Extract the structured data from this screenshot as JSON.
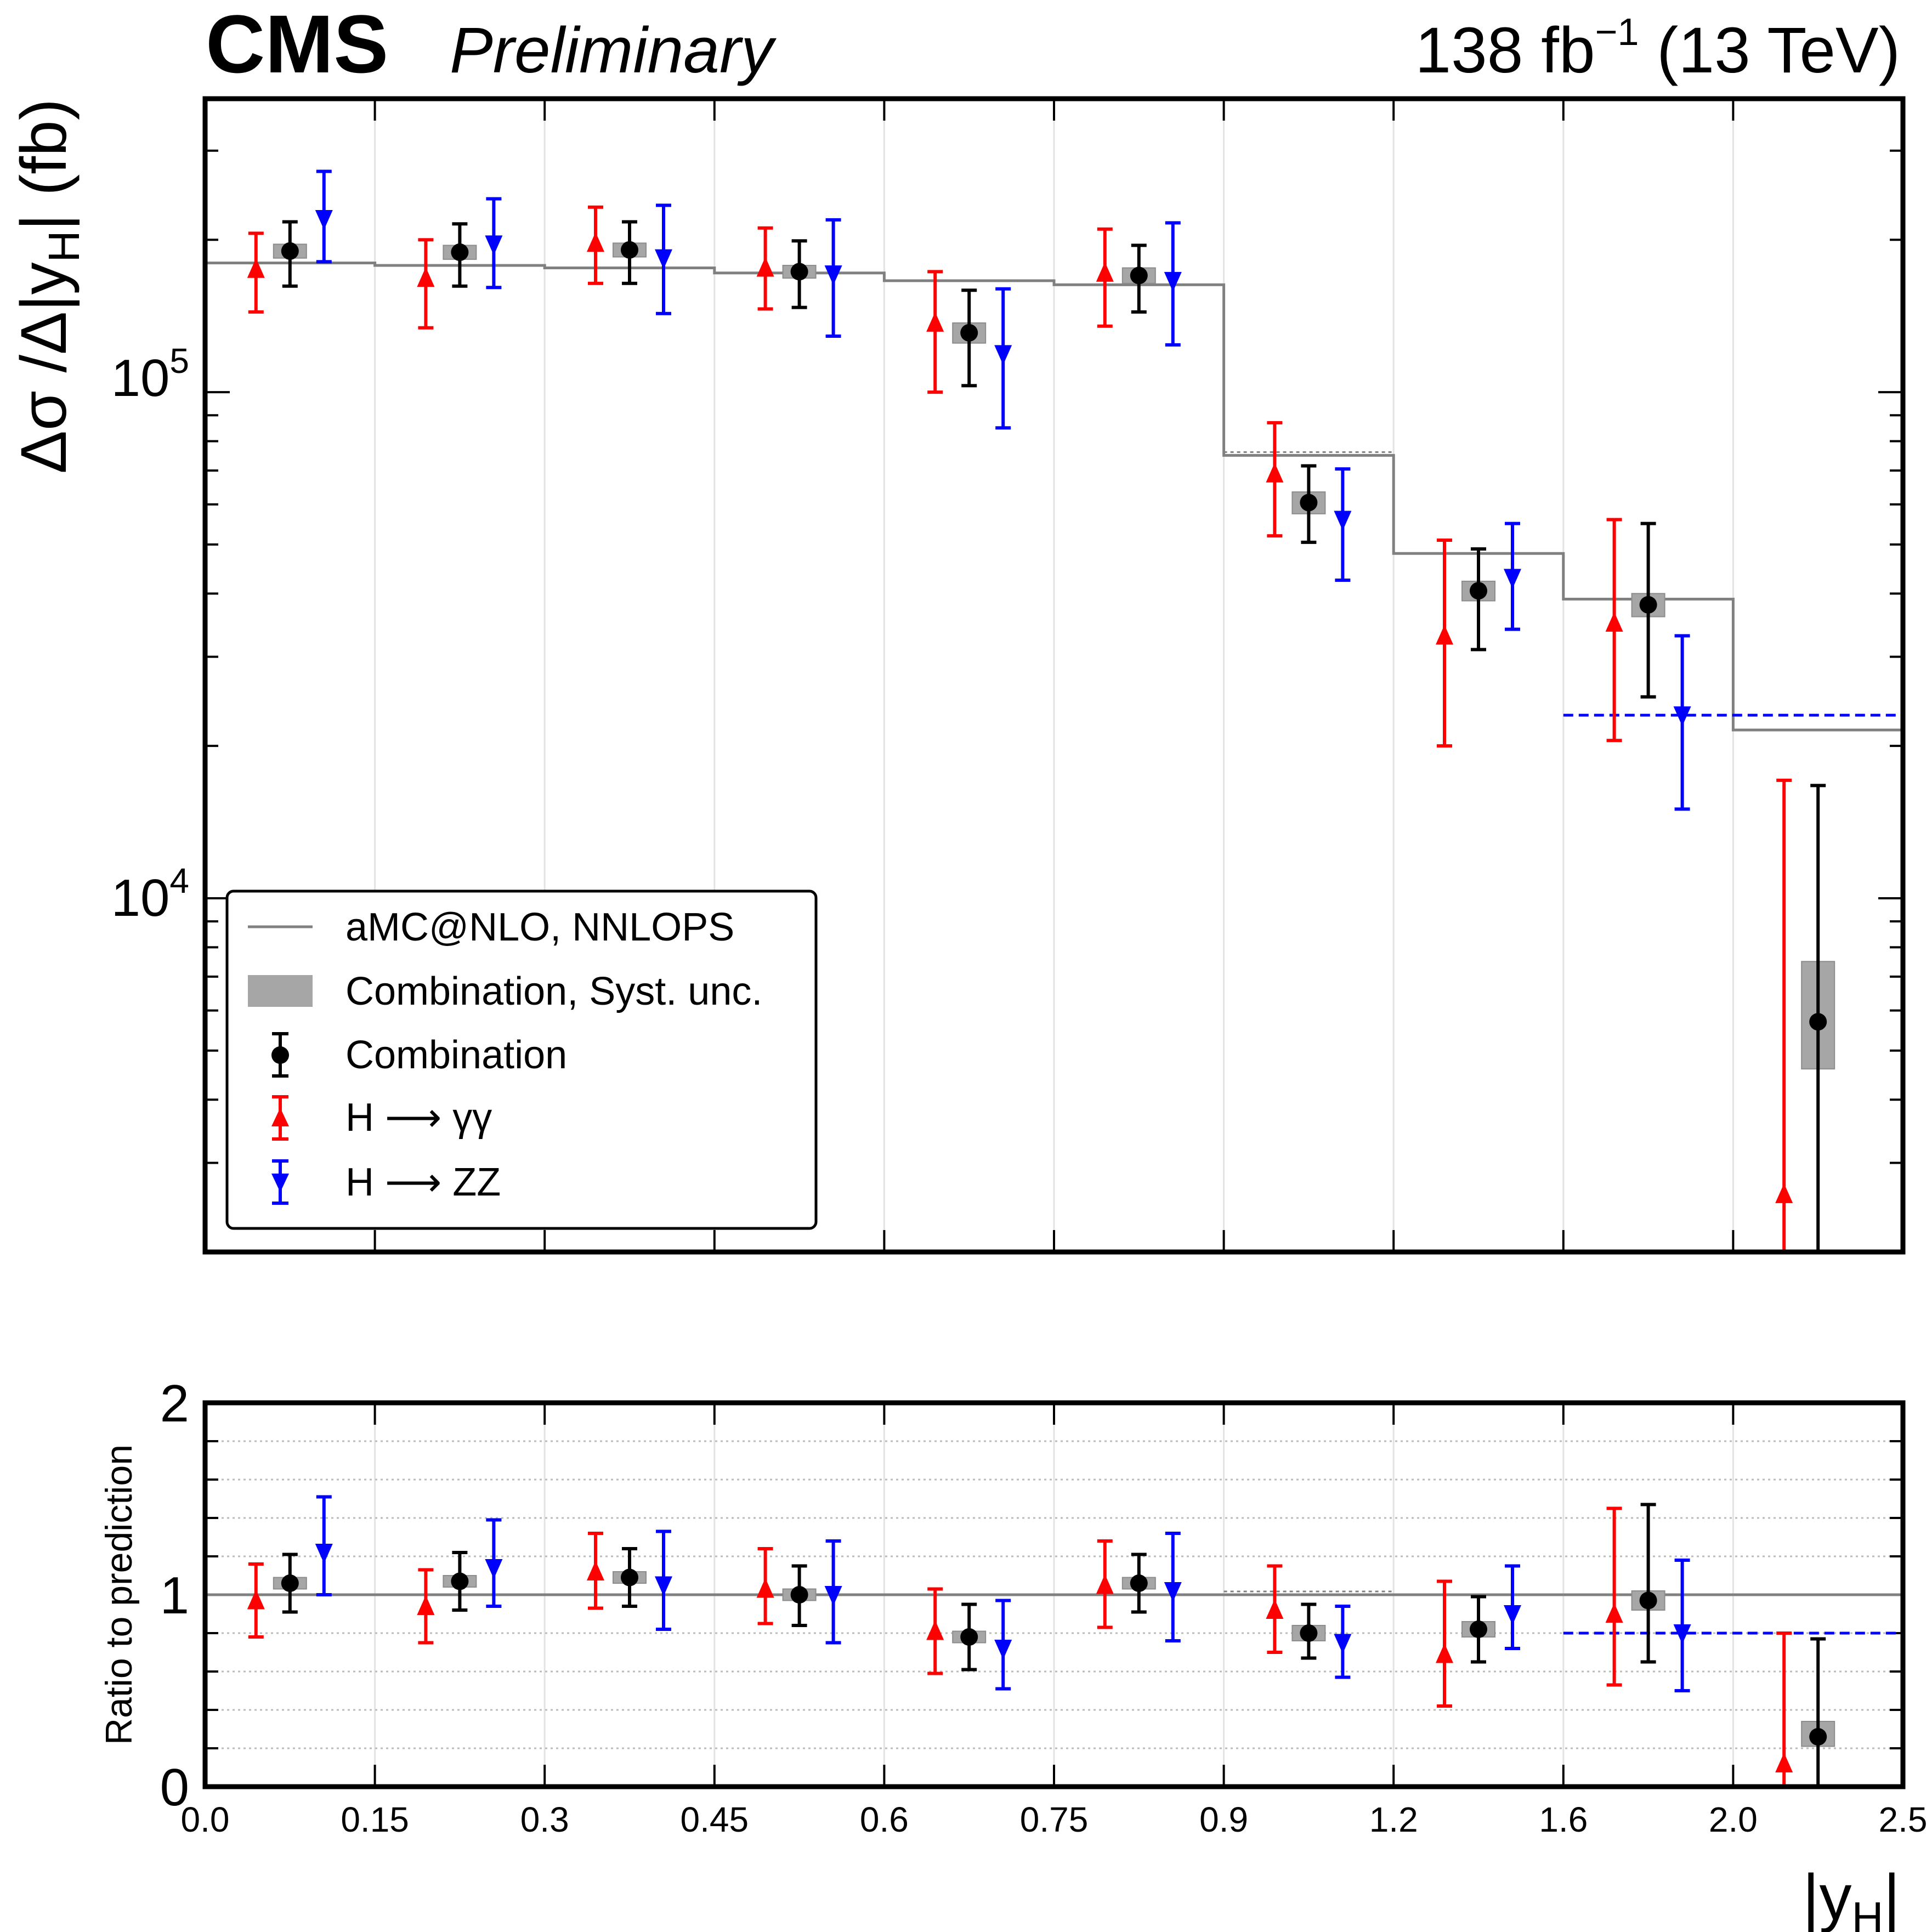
{
  "header": {
    "experiment": "CMS",
    "status": "Preliminary",
    "lumi_prefix": "138 fb",
    "lumi_exp": "−1",
    "lumi_suffix": " (13 TeV)"
  },
  "legend": {
    "prediction": "aMC@NLO, NNLOPS",
    "syst": "Combination, Syst. unc.",
    "combination": "Combination",
    "hgg_prefix": "H ⟶ γγ",
    "hzz_prefix": "H ⟶  ZZ"
  },
  "labels": {
    "ylabel_main": "Δσ /Δ|y",
    "ylabel_main_sub": "H",
    "ylabel_main_tail": "| (fb)",
    "ylabel_ratio": "Ratio to prediction",
    "xlabel": "|y",
    "xlabel_sub": "H",
    "xlabel_tail": "|",
    "y_tick_1e4_base": "10",
    "y_tick_1e4_exp": "4",
    "y_tick_1e5_base": "10",
    "y_tick_1e5_exp": "5"
  },
  "chart_data": [
    {
      "type": "line",
      "panel": "main",
      "y_scale": "log",
      "ylim": [
        2000,
        380000
      ],
      "x_bin_labels": [
        "0.0",
        "0.15",
        "0.3",
        "0.45",
        "0.6",
        "0.75",
        "0.9",
        "1.2",
        "1.6",
        "2.0",
        "2.5"
      ],
      "colors": {
        "prediction": "#808080",
        "syst": "#a6a6a6",
        "combination": "#000000",
        "hgg": "#ff0000",
        "hzz": "#0000ff"
      },
      "prediction": [
        180000,
        178000,
        176000,
        172000,
        166000,
        163000,
        75000,
        48000,
        39000,
        21500
      ],
      "prediction_hzz_last_bins": {
        "from_bin": 8,
        "value": 23000
      },
      "series": [
        {
          "name": "Combination",
          "values": [
            190000,
            189000,
            191000,
            173000,
            131000,
            170000,
            60500,
            40500,
            38000,
            5700
          ],
          "err_lo": [
            28000,
            27000,
            27000,
            26000,
            28000,
            26000,
            10000,
            9500,
            13000,
            3700
          ],
          "err_hi": [
            27000,
            26000,
            26000,
            26000,
            28000,
            25000,
            11000,
            8500,
            17000,
            11000
          ],
          "syst_lo": [
            6000,
            6000,
            6000,
            5000,
            6000,
            6000,
            3000,
            1800,
            2000,
            1100
          ],
          "syst_hi": [
            6000,
            6000,
            6000,
            5000,
            6000,
            6000,
            3000,
            1800,
            2000,
            1800
          ]
        },
        {
          "name": "H → γγ",
          "values": [
            175000,
            168000,
            197000,
            176000,
            137000,
            172000,
            69000,
            33000,
            35000,
            2600
          ],
          "err_lo": [
            31000,
            34000,
            33000,
            30000,
            37000,
            37000,
            17000,
            13000,
            14500,
            600
          ],
          "err_hi": [
            31000,
            32000,
            35000,
            35000,
            36000,
            38000,
            18000,
            18000,
            21000,
            14500
          ]
        },
        {
          "name": "H → ZZ",
          "values": [
            220000,
            196000,
            184000,
            171000,
            119000,
            166000,
            56000,
            43000,
            23000,
            null
          ],
          "err_lo": [
            39000,
            35000,
            41000,
            42000,
            34000,
            42000,
            13500,
            9000,
            8000,
            null
          ],
          "err_hi": [
            53000,
            45000,
            50000,
            48000,
            41000,
            50000,
            14500,
            12000,
            10000,
            null
          ]
        }
      ]
    },
    {
      "type": "line",
      "panel": "ratio",
      "ylim": [
        0,
        2
      ],
      "y_ticks": [
        "0",
        "1",
        "2"
      ],
      "x_bin_labels": [
        "0.0",
        "0.15",
        "0.3",
        "0.45",
        "0.6",
        "0.75",
        "0.9",
        "1.2",
        "1.6",
        "2.0",
        "2.5"
      ],
      "series": [
        {
          "name": "Combination",
          "values": [
            1.06,
            1.07,
            1.09,
            1.0,
            0.78,
            1.06,
            0.8,
            0.82,
            0.97,
            0.26
          ],
          "err_lo": [
            0.15,
            0.15,
            0.15,
            0.16,
            0.17,
            0.15,
            0.13,
            0.17,
            0.32,
            0.26
          ],
          "err_hi": [
            0.15,
            0.15,
            0.15,
            0.15,
            0.17,
            0.15,
            0.15,
            0.17,
            0.5,
            0.51
          ],
          "syst_lo": [
            0.03,
            0.03,
            0.03,
            0.03,
            0.03,
            0.03,
            0.04,
            0.04,
            0.05,
            0.05
          ],
          "syst_hi": [
            0.03,
            0.03,
            0.03,
            0.03,
            0.03,
            0.03,
            0.04,
            0.04,
            0.05,
            0.08
          ]
        },
        {
          "name": "H → γγ",
          "values": [
            0.97,
            0.94,
            1.12,
            1.03,
            0.81,
            1.05,
            0.92,
            0.69,
            0.9,
            0.12
          ],
          "err_lo": [
            0.19,
            0.19,
            0.19,
            0.18,
            0.22,
            0.22,
            0.22,
            0.27,
            0.37,
            0.12
          ],
          "err_hi": [
            0.19,
            0.19,
            0.2,
            0.21,
            0.22,
            0.23,
            0.23,
            0.38,
            0.55,
            0.68
          ]
        },
        {
          "name": "H → ZZ",
          "values": [
            1.22,
            1.14,
            1.05,
            1.0,
            0.72,
            1.02,
            0.75,
            0.9,
            0.8,
            null
          ],
          "err_lo": [
            0.22,
            0.2,
            0.23,
            0.25,
            0.21,
            0.26,
            0.18,
            0.18,
            0.3,
            null
          ],
          "err_hi": [
            0.29,
            0.25,
            0.28,
            0.28,
            0.25,
            0.3,
            0.19,
            0.25,
            0.38,
            null
          ]
        }
      ]
    }
  ]
}
